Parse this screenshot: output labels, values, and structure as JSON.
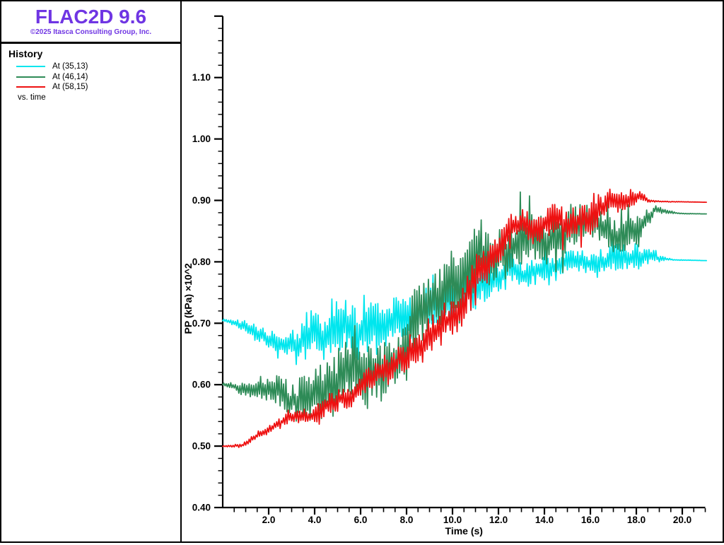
{
  "app": {
    "title": "FLAC2D 9.6",
    "copyright": "©2025 Itasca Consulting Group, Inc.",
    "title_color": "#6f35e3"
  },
  "sidebar": {
    "section_title": "History",
    "legend": [
      {
        "label": "At (35,13)",
        "color": "#00e6ee"
      },
      {
        "label": "At (46,14)",
        "color": "#2e8b57"
      },
      {
        "label": "At (58,15)",
        "color": "#ee1111"
      }
    ],
    "footer": "vs. time"
  },
  "chart_data": {
    "type": "line",
    "title": "",
    "xlabel": "Time (s)",
    "ylabel": "PP (kPa) ×10^2",
    "xlim": [
      0,
      21.05
    ],
    "ylim": [
      0.4,
      1.2
    ],
    "grid": false,
    "legend_position": "left-sidebar",
    "x_axis_end": 21,
    "x_major_step": 2,
    "x_minor_step": 0.5,
    "y_major_step": 0.1,
    "y_minor_step": 0.02,
    "x_major_tick_labels": [
      "2.0",
      "4.0",
      "6.0",
      "8.0",
      "10.0",
      "12.0",
      "14.0",
      "16.0",
      "18.0",
      "20.0"
    ],
    "y_major_tick_labels": [
      "0.40",
      "0.50",
      "0.60",
      "0.70",
      "0.80",
      "0.90",
      "1.00",
      "1.10"
    ],
    "axis_color": "#000000",
    "series": [
      {
        "name": "At (35,13)",
        "color": "#00e6ee",
        "seed": 11,
        "start_value": 0.705,
        "end_value": 0.802,
        "trend_keypoints_t_mean_amp": [
          [
            0,
            0.705,
            0.002
          ],
          [
            0.4,
            0.704,
            0.006
          ],
          [
            1,
            0.695,
            0.014
          ],
          [
            1.5,
            0.684,
            0.016
          ],
          [
            2,
            0.672,
            0.018
          ],
          [
            2.5,
            0.667,
            0.024
          ],
          [
            3,
            0.665,
            0.032
          ],
          [
            3.5,
            0.67,
            0.046
          ],
          [
            4,
            0.678,
            0.056
          ],
          [
            5,
            0.697,
            0.063
          ],
          [
            6,
            0.71,
            0.06
          ],
          [
            7,
            0.72,
            0.056
          ],
          [
            8,
            0.732,
            0.052
          ],
          [
            9,
            0.745,
            0.05
          ],
          [
            10,
            0.757,
            0.046
          ],
          [
            11,
            0.772,
            0.042
          ],
          [
            12,
            0.782,
            0.036
          ],
          [
            13,
            0.79,
            0.031
          ],
          [
            14,
            0.796,
            0.026
          ],
          [
            15,
            0.8,
            0.022
          ],
          [
            16,
            0.8,
            0.024
          ],
          [
            17,
            0.798,
            0.028
          ],
          [
            17.8,
            0.794,
            0.032
          ],
          [
            18.3,
            0.802,
            0.022
          ],
          [
            18.8,
            0.806,
            0.012
          ],
          [
            19.2,
            0.804,
            0.004
          ],
          [
            19.6,
            0.803,
            0.001
          ],
          [
            21.05,
            0.802,
            0
          ]
        ]
      },
      {
        "name": "At (46,14)",
        "color": "#2e8b57",
        "seed": 22,
        "start_value": 0.601,
        "end_value": 0.878,
        "trend_keypoints_t_mean_amp": [
          [
            0,
            0.601,
            0.003
          ],
          [
            0.5,
            0.601,
            0.01
          ],
          [
            1,
            0.6,
            0.018
          ],
          [
            2,
            0.595,
            0.026
          ],
          [
            3,
            0.588,
            0.04
          ],
          [
            3.7,
            0.578,
            0.062
          ],
          [
            4.3,
            0.572,
            0.068
          ],
          [
            5,
            0.588,
            0.07
          ],
          [
            6,
            0.608,
            0.066
          ],
          [
            7,
            0.634,
            0.062
          ],
          [
            8,
            0.662,
            0.066
          ],
          [
            9,
            0.7,
            0.07
          ],
          [
            10,
            0.733,
            0.072
          ],
          [
            11,
            0.775,
            0.075
          ],
          [
            11.5,
            0.79,
            0.07
          ],
          [
            12,
            0.796,
            0.06
          ],
          [
            13,
            0.812,
            0.055
          ],
          [
            14,
            0.83,
            0.05
          ],
          [
            15,
            0.845,
            0.047
          ],
          [
            16,
            0.852,
            0.042
          ],
          [
            17,
            0.855,
            0.038
          ],
          [
            18,
            0.862,
            0.032
          ],
          [
            18.4,
            0.872,
            0.022
          ],
          [
            18.8,
            0.884,
            0.01
          ],
          [
            19.3,
            0.88,
            0.004
          ],
          [
            19.8,
            0.879,
            0.001
          ],
          [
            21.05,
            0.878,
            0
          ]
        ]
      },
      {
        "name": "At (58,15)",
        "color": "#ee1111",
        "seed": 33,
        "start_value": 0.5,
        "end_value": 0.897,
        "trend_keypoints_t_mean_amp": [
          [
            0,
            0.5,
            0.001
          ],
          [
            0.8,
            0.501,
            0.004
          ],
          [
            1.5,
            0.514,
            0.008
          ],
          [
            2,
            0.524,
            0.01
          ],
          [
            2.5,
            0.537,
            0.011
          ],
          [
            3,
            0.547,
            0.013
          ],
          [
            4,
            0.553,
            0.02
          ],
          [
            5,
            0.566,
            0.022
          ],
          [
            6,
            0.59,
            0.026
          ],
          [
            7,
            0.615,
            0.03
          ],
          [
            8,
            0.636,
            0.035
          ],
          [
            9,
            0.662,
            0.04
          ],
          [
            10,
            0.71,
            0.045
          ],
          [
            10.8,
            0.762,
            0.045
          ],
          [
            11.5,
            0.8,
            0.042
          ],
          [
            12,
            0.824,
            0.04
          ],
          [
            13,
            0.85,
            0.036
          ],
          [
            14,
            0.858,
            0.032
          ],
          [
            15,
            0.862,
            0.032
          ],
          [
            16,
            0.872,
            0.034
          ],
          [
            17,
            0.886,
            0.03
          ],
          [
            17.9,
            0.9,
            0.018
          ],
          [
            18.3,
            0.903,
            0.01
          ],
          [
            18.6,
            0.899,
            0.003
          ],
          [
            19,
            0.898,
            0.001
          ],
          [
            21.05,
            0.897,
            0
          ]
        ]
      }
    ]
  }
}
